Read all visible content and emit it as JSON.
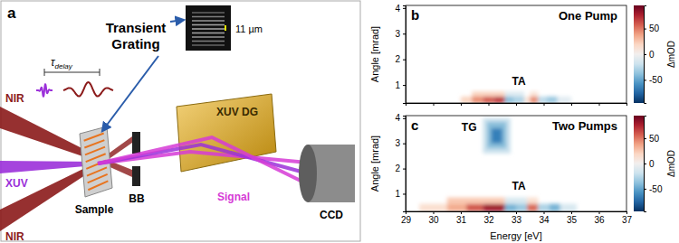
{
  "diagram": {
    "panel_label": "a",
    "transient_grating": {
      "label": [
        "Transient",
        "Grating"
      ],
      "scale_label": "11 µm"
    },
    "delay": {
      "symbol": "τ",
      "subscript": "delay"
    },
    "beam_labels": [
      "NIR",
      "XUV",
      "NIR"
    ],
    "labels": {
      "sample": "Sample",
      "beam_block": "BB",
      "grating": "XUV DG",
      "signal": "Signal",
      "detector": "CCD"
    }
  },
  "chart_data": [
    {
      "type": "heatmap",
      "panel_label": "b",
      "title": "One Pump",
      "ylabel": "Angle [mrad]",
      "xlim": [
        29,
        37
      ],
      "xticks": [
        29,
        30,
        31,
        32,
        33,
        34,
        35,
        36,
        37
      ],
      "ylim": [
        0.3,
        4.1
      ],
      "yticks": [
        1,
        2,
        3,
        4
      ],
      "tick_labels": "y",
      "cells": [
        {
          "x": [
            31.0,
            31.4
          ],
          "y": [
            0.3,
            0.55
          ],
          "value": 20
        },
        {
          "x": [
            31.4,
            31.8
          ],
          "y": [
            0.3,
            0.55
          ],
          "value": 45
        },
        {
          "x": [
            31.8,
            32.2
          ],
          "y": [
            0.3,
            0.55
          ],
          "value": 60
        },
        {
          "x": [
            32.2,
            32.6
          ],
          "y": [
            0.3,
            0.55
          ],
          "value": 70
        },
        {
          "x": [
            32.6,
            32.9
          ],
          "y": [
            0.3,
            0.55
          ],
          "value": -40
        },
        {
          "x": [
            32.9,
            33.3
          ],
          "y": [
            0.3,
            0.55
          ],
          "value": -30
        },
        {
          "x": [
            33.3,
            33.5
          ],
          "y": [
            0.3,
            0.55
          ],
          "value": 10
        },
        {
          "x": [
            33.5,
            33.8
          ],
          "y": [
            0.3,
            0.55
          ],
          "value": 45
        },
        {
          "x": [
            33.8,
            34.1
          ],
          "y": [
            0.3,
            0.55
          ],
          "value": -25
        },
        {
          "x": [
            34.1,
            34.5
          ],
          "y": [
            0.3,
            0.55
          ],
          "value": -35
        },
        {
          "x": [
            34.5,
            35.0
          ],
          "y": [
            0.3,
            0.55
          ],
          "value": -10
        },
        {
          "x": [
            31.4,
            32.6
          ],
          "y": [
            0.55,
            0.75
          ],
          "value": 20
        },
        {
          "x": [
            32.6,
            33.3
          ],
          "y": [
            0.55,
            0.75
          ],
          "value": -12
        },
        {
          "x": [
            33.5,
            33.8
          ],
          "y": [
            0.55,
            0.75
          ],
          "value": 12
        }
      ],
      "colorbar": {
        "label": "ΔmOD",
        "range": [
          -95,
          95
        ],
        "ticks": [
          -50,
          0,
          50
        ]
      },
      "annotations": [
        {
          "text": "TA",
          "x": 33.1,
          "y": 1.0
        }
      ]
    },
    {
      "type": "heatmap",
      "panel_label": "c",
      "title": "Two Pumps",
      "xlabel": "Energy [eV]",
      "ylabel": "Angle [mrad]",
      "xlim": [
        29,
        37
      ],
      "xticks": [
        29,
        30,
        31,
        32,
        33,
        34,
        35,
        36,
        37
      ],
      "ylim": [
        0.3,
        4.1
      ],
      "yticks": [
        1,
        2,
        3,
        4
      ],
      "cells": [
        {
          "x": [
            29.5,
            30.5
          ],
          "y": [
            0.3,
            0.6
          ],
          "value": 15
        },
        {
          "x": [
            30.5,
            31.2
          ],
          "y": [
            0.3,
            0.6
          ],
          "value": 35
        },
        {
          "x": [
            31.2,
            31.8
          ],
          "y": [
            0.3,
            0.6
          ],
          "value": 60
        },
        {
          "x": [
            31.8,
            32.6
          ],
          "y": [
            0.3,
            0.6
          ],
          "value": 80
        },
        {
          "x": [
            32.6,
            33.0
          ],
          "y": [
            0.3,
            0.6
          ],
          "value": -45
        },
        {
          "x": [
            33.0,
            33.4
          ],
          "y": [
            0.3,
            0.6
          ],
          "value": -35
        },
        {
          "x": [
            33.4,
            33.8
          ],
          "y": [
            0.3,
            0.6
          ],
          "value": 55
        },
        {
          "x": [
            33.8,
            34.2
          ],
          "y": [
            0.3,
            0.6
          ],
          "value": -30
        },
        {
          "x": [
            34.2,
            34.6
          ],
          "y": [
            0.3,
            0.6
          ],
          "value": -45
        },
        {
          "x": [
            34.6,
            35.2
          ],
          "y": [
            0.3,
            0.6
          ],
          "value": -15
        },
        {
          "x": [
            30.5,
            32.6
          ],
          "y": [
            0.6,
            0.85
          ],
          "value": 25
        },
        {
          "x": [
            32.6,
            33.4
          ],
          "y": [
            0.6,
            0.85
          ],
          "value": -15
        },
        {
          "x": [
            33.4,
            33.8
          ],
          "y": [
            0.6,
            0.85
          ],
          "value": 15
        },
        {
          "x": [
            31.8,
            32.8
          ],
          "y": [
            2.6,
            4.0
          ],
          "value": -20
        },
        {
          "x": [
            31.95,
            32.65
          ],
          "y": [
            2.8,
            3.85
          ],
          "value": -40
        },
        {
          "x": [
            32.1,
            32.5
          ],
          "y": [
            3.0,
            3.6
          ],
          "value": -65
        }
      ],
      "colorbar": {
        "label": "ΔmOD",
        "range": [
          -95,
          95
        ],
        "ticks": [
          -50,
          0,
          50
        ]
      },
      "annotations": [
        {
          "text": "TA",
          "x": 33.1,
          "y": 1.15
        },
        {
          "text": "TG",
          "x": 31.3,
          "y": 3.5
        }
      ]
    }
  ]
}
